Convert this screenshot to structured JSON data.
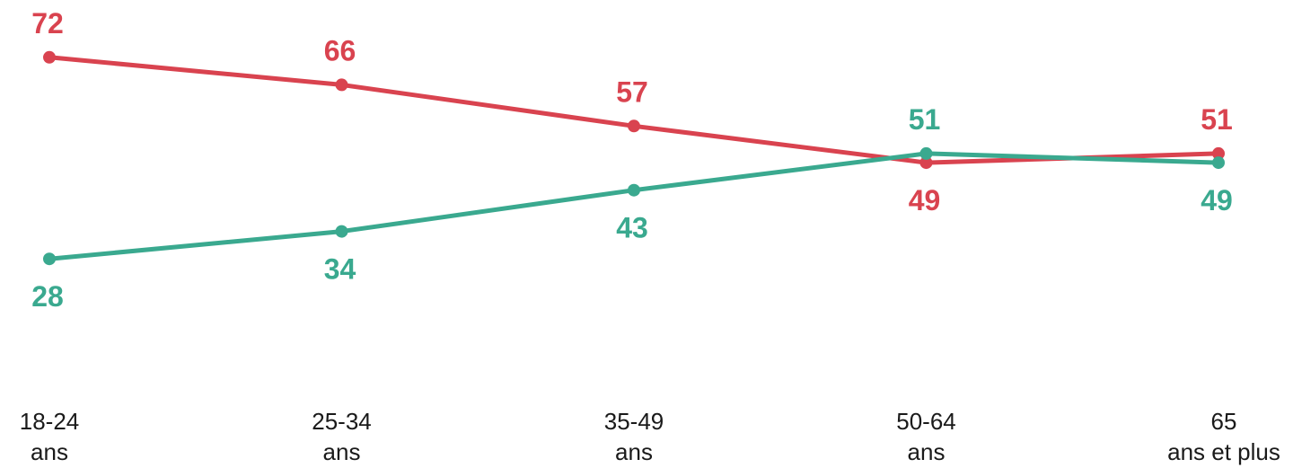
{
  "chart_data": {
    "type": "line",
    "categories": [
      [
        "18-24",
        "ans"
      ],
      [
        "25-34",
        "ans"
      ],
      [
        "35-49",
        "ans"
      ],
      [
        "50-64",
        "ans"
      ],
      [
        "65",
        "ans et plus"
      ]
    ],
    "series": [
      {
        "color": "#d9434f",
        "values": [
          72,
          66,
          57,
          49,
          51
        ],
        "label_side": [
          "above",
          "above",
          "above",
          "below",
          "above"
        ]
      },
      {
        "color": "#3aa98f",
        "values": [
          28,
          34,
          43,
          51,
          49
        ],
        "label_side": [
          "below",
          "below",
          "below",
          "above",
          "below"
        ]
      }
    ],
    "ylim": [
      0,
      100
    ],
    "grid": false,
    "legend": "none"
  }
}
